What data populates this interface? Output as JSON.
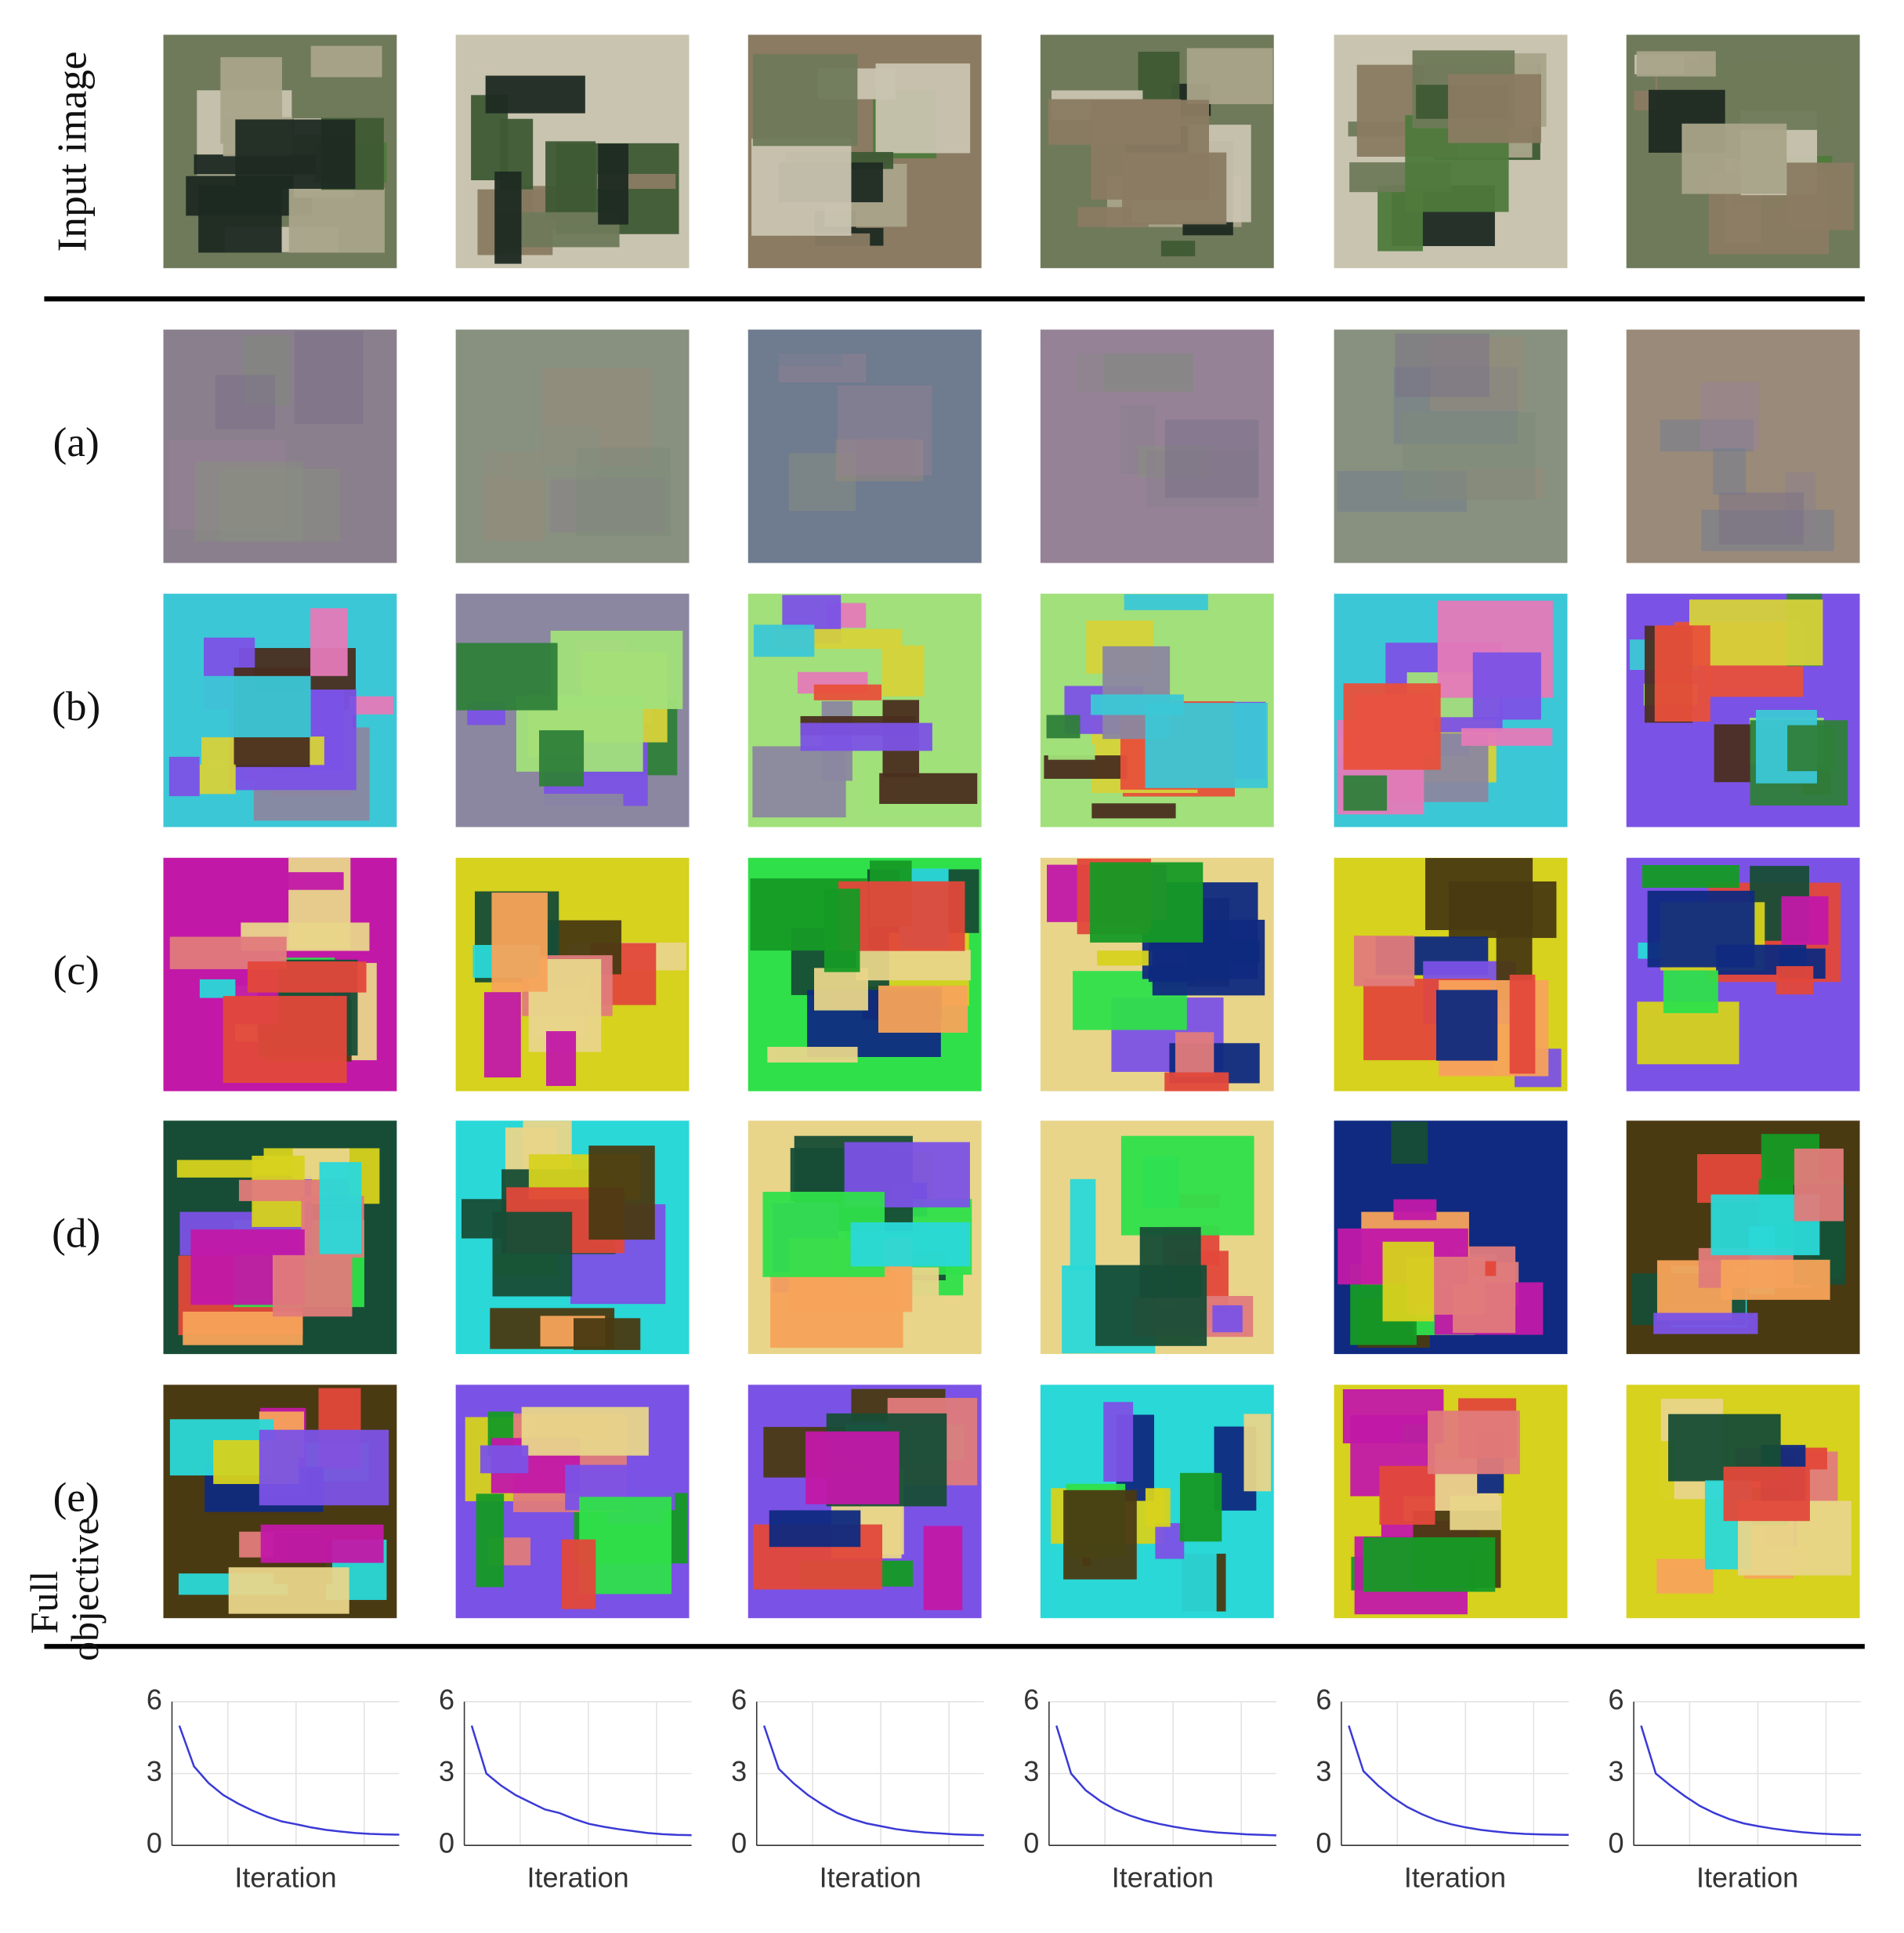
{
  "row_labels": [
    "Input image",
    "(a)",
    "(b)",
    "(c)",
    "(d)",
    "(e)"
  ],
  "chart_data": [
    {
      "type": "line",
      "x_label": "Iteration",
      "y_label": "Full objective",
      "ylim": [
        0,
        6
      ],
      "yticks": [
        0,
        3,
        6
      ],
      "grid": true,
      "series": [
        {
          "color": "#3a3ad6",
          "values": [
            5.0,
            3.3,
            2.6,
            2.1,
            1.75,
            1.45,
            1.2,
            1.0,
            0.88,
            0.75,
            0.65,
            0.58,
            0.52,
            0.48,
            0.46,
            0.45
          ]
        }
      ]
    },
    {
      "type": "line",
      "x_label": "Iteration",
      "ylim": [
        0,
        6
      ],
      "yticks": [
        0,
        3,
        6
      ],
      "grid": true,
      "series": [
        {
          "color": "#3a3ad6",
          "values": [
            5.0,
            3.0,
            2.5,
            2.1,
            1.8,
            1.5,
            1.35,
            1.1,
            0.9,
            0.78,
            0.68,
            0.6,
            0.52,
            0.47,
            0.44,
            0.43
          ]
        }
      ]
    },
    {
      "type": "line",
      "x_label": "Iteration",
      "ylim": [
        0,
        6
      ],
      "yticks": [
        0,
        3,
        6
      ],
      "grid": true,
      "series": [
        {
          "color": "#3a3ad6",
          "values": [
            5.0,
            3.2,
            2.6,
            2.1,
            1.7,
            1.35,
            1.1,
            0.92,
            0.8,
            0.68,
            0.6,
            0.54,
            0.5,
            0.46,
            0.44,
            0.43
          ]
        }
      ]
    },
    {
      "type": "line",
      "x_label": "Iteration",
      "ylim": [
        0,
        6
      ],
      "yticks": [
        0,
        3,
        6
      ],
      "grid": true,
      "series": [
        {
          "color": "#3a3ad6",
          "values": [
            5.0,
            3.0,
            2.3,
            1.85,
            1.5,
            1.25,
            1.05,
            0.9,
            0.78,
            0.68,
            0.6,
            0.54,
            0.5,
            0.46,
            0.44,
            0.42
          ]
        }
      ]
    },
    {
      "type": "line",
      "x_label": "Iteration",
      "ylim": [
        0,
        6
      ],
      "yticks": [
        0,
        3,
        6
      ],
      "grid": true,
      "series": [
        {
          "color": "#3a3ad6",
          "values": [
            5.0,
            3.1,
            2.5,
            2.0,
            1.6,
            1.3,
            1.05,
            0.88,
            0.75,
            0.65,
            0.58,
            0.52,
            0.48,
            0.46,
            0.45,
            0.44
          ]
        }
      ]
    },
    {
      "type": "line",
      "x_label": "Iteration",
      "ylim": [
        0,
        6
      ],
      "yticks": [
        0,
        3,
        6
      ],
      "grid": true,
      "series": [
        {
          "color": "#3a3ad6",
          "values": [
            5.0,
            3.0,
            2.5,
            2.05,
            1.65,
            1.35,
            1.1,
            0.92,
            0.8,
            0.7,
            0.62,
            0.55,
            0.5,
            0.47,
            0.45,
            0.44
          ]
        }
      ]
    }
  ]
}
